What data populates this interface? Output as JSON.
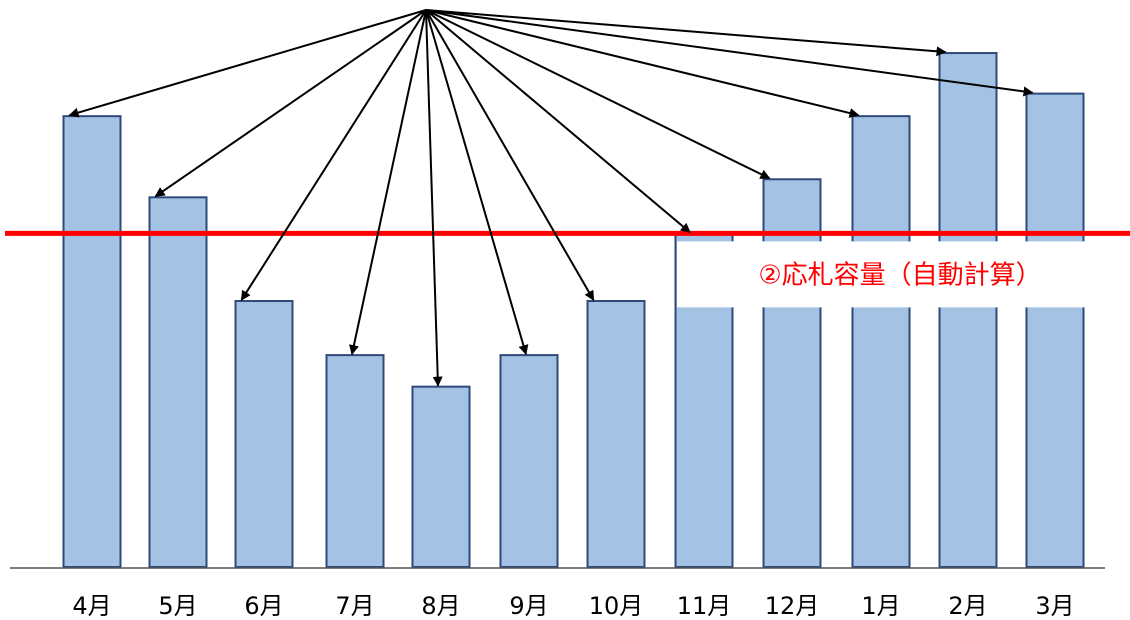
{
  "chart_data": {
    "type": "bar",
    "categories": [
      "4月",
      "5月",
      "6月",
      "7月",
      "8月",
      "9月",
      "10月",
      "11月",
      "12月",
      "1月",
      "2月",
      "3月"
    ],
    "values": [
      100,
      82,
      59,
      47,
      40,
      47,
      59,
      74,
      86,
      100,
      114,
      105
    ],
    "ylim": [
      0,
      120
    ],
    "threshold": {
      "value": 74,
      "label": "②応札容量（自動計算）",
      "color": "#ff0000"
    },
    "arrows": {
      "from": "single-point-above-chart",
      "to": "each-bar-top"
    },
    "bar_color": "#a4c2e3",
    "bar_edge_color": "#2f4a7a",
    "grid": false,
    "legend": "none"
  }
}
